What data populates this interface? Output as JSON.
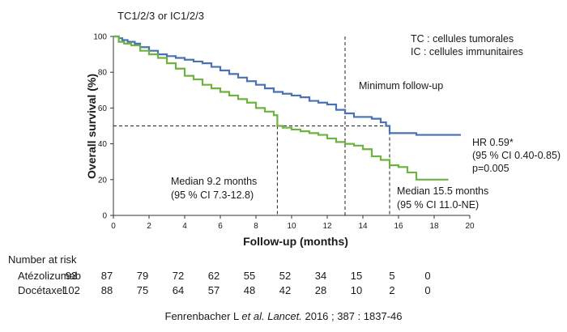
{
  "chart_data": {
    "type": "line",
    "subgroup_label": "TC1/2/3 or IC1/2/3",
    "legend_lines": [
      "TC : cellules tumorales",
      "IC : cellules immunitaires"
    ],
    "xlabel": "Follow-up (months)",
    "ylabel": "Overall survival (%)",
    "xlim": [
      0,
      20
    ],
    "ylim": [
      0,
      100
    ],
    "x_ticks": [
      "0",
      "2",
      "4",
      "6",
      "8",
      "10",
      "12",
      "14",
      "16",
      "18",
      "20"
    ],
    "y_ticks": [
      "0",
      "20",
      "40",
      "60",
      "80",
      "100"
    ],
    "series": [
      {
        "name": "Atézolizumab",
        "color": "#4a72b0",
        "points": [
          [
            0,
            100
          ],
          [
            0.3,
            99
          ],
          [
            0.5,
            98
          ],
          [
            0.8,
            97
          ],
          [
            1.2,
            96
          ],
          [
            1.5,
            94
          ],
          [
            2,
            92
          ],
          [
            2.5,
            90
          ],
          [
            3,
            89
          ],
          [
            3.5,
            88
          ],
          [
            4,
            87
          ],
          [
            4.5,
            86
          ],
          [
            5,
            85
          ],
          [
            5.5,
            83
          ],
          [
            6,
            81
          ],
          [
            6.5,
            79
          ],
          [
            7,
            77
          ],
          [
            7.5,
            75
          ],
          [
            8,
            73
          ],
          [
            8.5,
            71
          ],
          [
            9,
            69
          ],
          [
            9.5,
            68
          ],
          [
            10,
            67
          ],
          [
            10.5,
            66
          ],
          [
            11,
            64
          ],
          [
            11.5,
            63
          ],
          [
            12,
            62
          ],
          [
            12.5,
            59
          ],
          [
            13,
            57
          ],
          [
            13.5,
            55
          ],
          [
            14,
            55
          ],
          [
            14.5,
            54
          ],
          [
            15,
            52
          ],
          [
            15.3,
            50
          ],
          [
            15.5,
            46
          ],
          [
            16,
            46
          ],
          [
            17,
            45
          ],
          [
            19.5,
            45
          ]
        ]
      },
      {
        "name": "Docétaxel",
        "color": "#6db33f",
        "points": [
          [
            0,
            100
          ],
          [
            0.3,
            97
          ],
          [
            0.6,
            96
          ],
          [
            1,
            95
          ],
          [
            1.5,
            92
          ],
          [
            2,
            90
          ],
          [
            2.5,
            88
          ],
          [
            3,
            85
          ],
          [
            3.5,
            82
          ],
          [
            4,
            78
          ],
          [
            4.5,
            76
          ],
          [
            5,
            73
          ],
          [
            5.5,
            71
          ],
          [
            6,
            69
          ],
          [
            6.5,
            67
          ],
          [
            7,
            65
          ],
          [
            7.5,
            63
          ],
          [
            8,
            60
          ],
          [
            8.5,
            58
          ],
          [
            9,
            56
          ],
          [
            9.2,
            50
          ],
          [
            9.5,
            49
          ],
          [
            10,
            48
          ],
          [
            10.5,
            47
          ],
          [
            11,
            46
          ],
          [
            11.5,
            45
          ],
          [
            12,
            43
          ],
          [
            12.5,
            41
          ],
          [
            13,
            40
          ],
          [
            13.5,
            39
          ],
          [
            14,
            37
          ],
          [
            14.5,
            33
          ],
          [
            15,
            31
          ],
          [
            15.5,
            28
          ],
          [
            16,
            27
          ],
          [
            16.5,
            24
          ],
          [
            17,
            20
          ],
          [
            18.8,
            20
          ]
        ]
      }
    ],
    "reference_lines": {
      "horizontal_y": 50,
      "vertical_x": [
        9.2,
        15.5
      ],
      "minimum_followup_x": 13
    },
    "annotations": {
      "minimum_followup": "Minimum follow-up",
      "median_docetaxel": [
        "Median 9.2 months",
        "(95 % CI 7.3-12.8)"
      ],
      "median_atezolizumab": [
        "Median 15.5 months",
        "(95 % CI 11.0-NE)"
      ],
      "hazard_ratio": [
        "HR 0.59*",
        "(95 % CI 0.40-0.85)",
        "p=0.005"
      ]
    }
  },
  "risk_table": {
    "title": "Number at risk",
    "rows": [
      {
        "label": "Atézolizumab",
        "values": [
          "93",
          "87",
          "79",
          "72",
          "62",
          "55",
          "52",
          "34",
          "15",
          "5",
          "0"
        ]
      },
      {
        "label": "Docétaxel",
        "values": [
          "102",
          "88",
          "75",
          "64",
          "57",
          "48",
          "42",
          "28",
          "10",
          "2",
          "0"
        ]
      }
    ]
  },
  "citation": {
    "authors": "Fenrenbacher L ",
    "etal": "et al. Lancet.",
    "rest": " 2016 ; 387 : 1837-46"
  }
}
